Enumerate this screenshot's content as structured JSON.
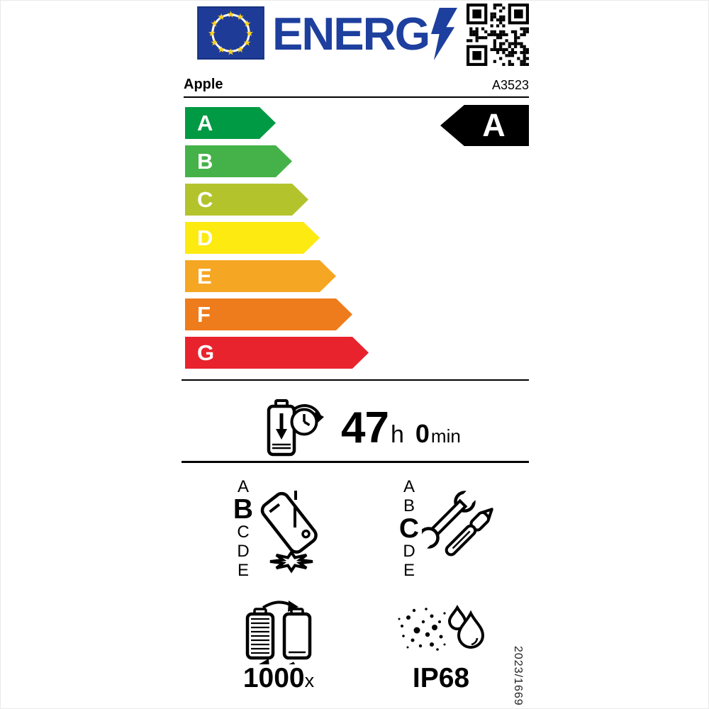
{
  "header": {
    "logo_text": "ENERG",
    "eu_flag_icon": "eu-flag",
    "lightning_icon": "lightning-bolt",
    "qr_icon": "qr-code"
  },
  "brand": {
    "name": "Apple",
    "model": "A3523"
  },
  "energy_scale": {
    "classes": [
      {
        "label": "A",
        "color": "#009a44"
      },
      {
        "label": "B",
        "color": "#45b249"
      },
      {
        "label": "C",
        "color": "#b3c32c"
      },
      {
        "label": "D",
        "color": "#fdea11"
      },
      {
        "label": "E",
        "color": "#f5a623"
      },
      {
        "label": "F",
        "color": "#ee7c1c"
      },
      {
        "label": "G",
        "color": "#e8232d"
      }
    ],
    "rated_grade": "A"
  },
  "battery_life": {
    "hours": "47",
    "hours_unit": "h",
    "minutes": "0",
    "minutes_unit": "min"
  },
  "drop_resistance": {
    "scale": [
      "A",
      "B",
      "C",
      "D",
      "E"
    ],
    "grade": "B"
  },
  "repairability": {
    "scale": [
      "A",
      "B",
      "C",
      "D",
      "E"
    ],
    "grade": "C"
  },
  "battery_cycles": {
    "value": "1000",
    "unit": "x"
  },
  "ingress_protection": {
    "rating": "IP68"
  },
  "regulation_number": "2023/1669"
}
